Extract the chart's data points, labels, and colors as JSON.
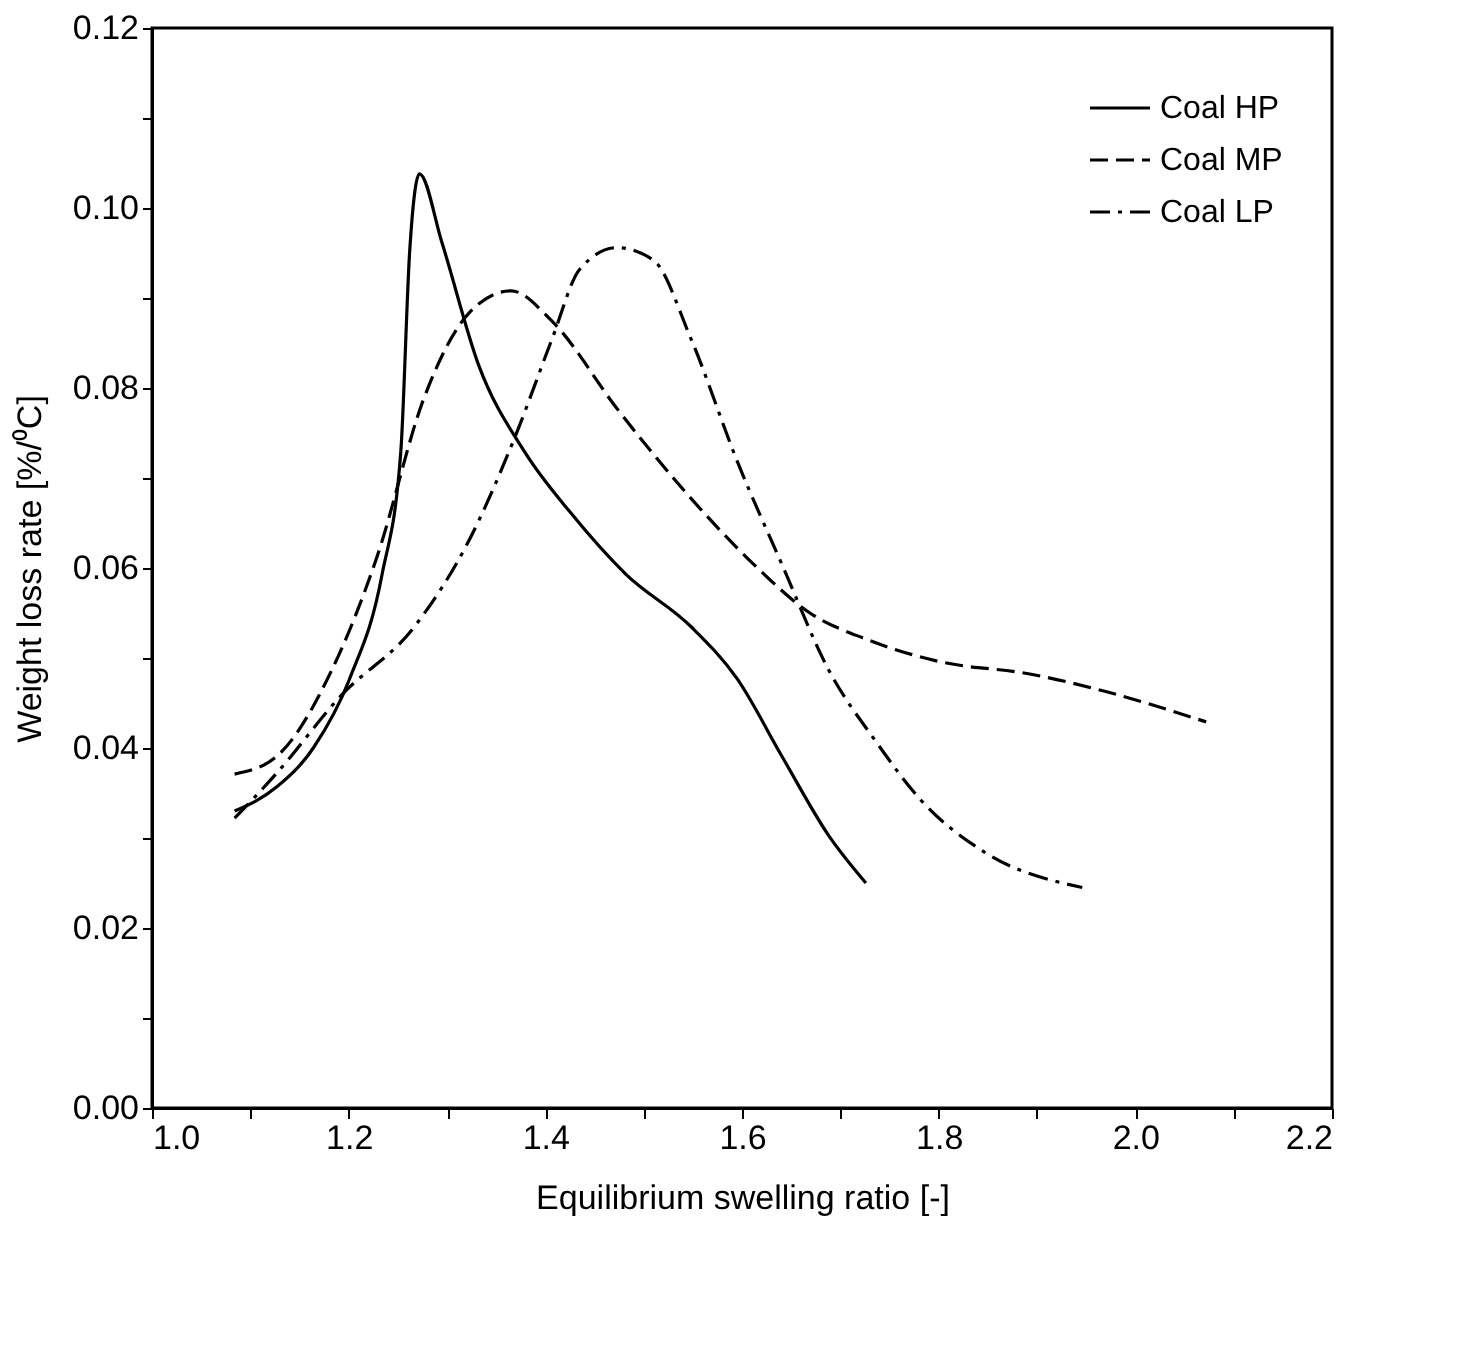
{
  "chart_data": {
    "type": "line",
    "xlabel": "Equilibrium swelling ratio [-]",
    "ylabel": "Weight loss rate [%/⁰C]",
    "xlim": [
      1.0,
      2.2
    ],
    "ylim": [
      0.0,
      0.12
    ],
    "xticks": [
      {
        "value": 1.0,
        "label": "1.0"
      },
      {
        "value": 1.1,
        "label": null
      },
      {
        "value": 1.2,
        "label": "1.2"
      },
      {
        "value": 1.3,
        "label": null
      },
      {
        "value": 1.4,
        "label": "1.4"
      },
      {
        "value": 1.5,
        "label": null
      },
      {
        "value": 1.6,
        "label": "1.6"
      },
      {
        "value": 1.7,
        "label": null
      },
      {
        "value": 1.8,
        "label": "1.8"
      },
      {
        "value": 1.9,
        "label": null
      },
      {
        "value": 2.0,
        "label": "2.0"
      },
      {
        "value": 2.1,
        "label": null
      },
      {
        "value": 2.2,
        "label": "2.2"
      }
    ],
    "yticks": [
      {
        "value": 0.0,
        "label": "0.00"
      },
      {
        "value": 0.01,
        "label": null
      },
      {
        "value": 0.02,
        "label": "0.02"
      },
      {
        "value": 0.03,
        "label": null
      },
      {
        "value": 0.04,
        "label": "0.04"
      },
      {
        "value": 0.05,
        "label": null
      },
      {
        "value": 0.06,
        "label": "0.06"
      },
      {
        "value": 0.07,
        "label": null
      },
      {
        "value": 0.08,
        "label": "0.08"
      },
      {
        "value": 0.09,
        "label": null
      },
      {
        "value": 0.1,
        "label": "0.10"
      },
      {
        "value": 0.11,
        "label": null
      },
      {
        "value": 0.12,
        "label": "0.12"
      }
    ],
    "grid": false,
    "legend": "top right",
    "marker": "none",
    "series": [
      {
        "name": "Coal HP",
        "color": "#000000",
        "line_style": "solid",
        "x": [
          1.084,
          1.126,
          1.164,
          1.201,
          1.234,
          1.253,
          1.262,
          1.272,
          1.295,
          1.332,
          1.379,
          1.426,
          1.482,
          1.548,
          1.595,
          1.641,
          1.688,
          1.726
        ],
        "values": [
          0.033,
          0.0356,
          0.04,
          0.0477,
          0.0593,
          0.0729,
          0.0951,
          0.1038,
          0.0961,
          0.0826,
          0.0729,
          0.0661,
          0.0593,
          0.0535,
          0.0477,
          0.039,
          0.0303,
          0.025
        ]
      },
      {
        "name": "Coal MP",
        "color": "#000000",
        "line_style": "dashed",
        "x": [
          1.084,
          1.126,
          1.183,
          1.229,
          1.276,
          1.323,
          1.365,
          1.407,
          1.473,
          1.538,
          1.613,
          1.669,
          1.726,
          1.801,
          1.894,
          1.969,
          2.072
        ],
        "values": [
          0.0371,
          0.039,
          0.0487,
          0.0613,
          0.0787,
          0.0884,
          0.0908,
          0.0874,
          0.0777,
          0.069,
          0.0603,
          0.055,
          0.0521,
          0.0496,
          0.0482,
          0.0463,
          0.0429
        ]
      },
      {
        "name": "Coal LP",
        "color": "#000000",
        "line_style": "dashdot",
        "x": [
          1.084,
          1.126,
          1.192,
          1.267,
          1.323,
          1.37,
          1.407,
          1.435,
          1.473,
          1.51,
          1.548,
          1.595,
          1.641,
          1.688,
          1.735,
          1.782,
          1.847,
          1.946
        ],
        "values": [
          0.0322,
          0.0371,
          0.0458,
          0.0535,
          0.0632,
          0.0748,
          0.0855,
          0.0932,
          0.0956,
          0.0942,
          0.0855,
          0.0719,
          0.0603,
          0.0487,
          0.0409,
          0.0342,
          0.0284,
          0.0245
        ]
      }
    ]
  }
}
